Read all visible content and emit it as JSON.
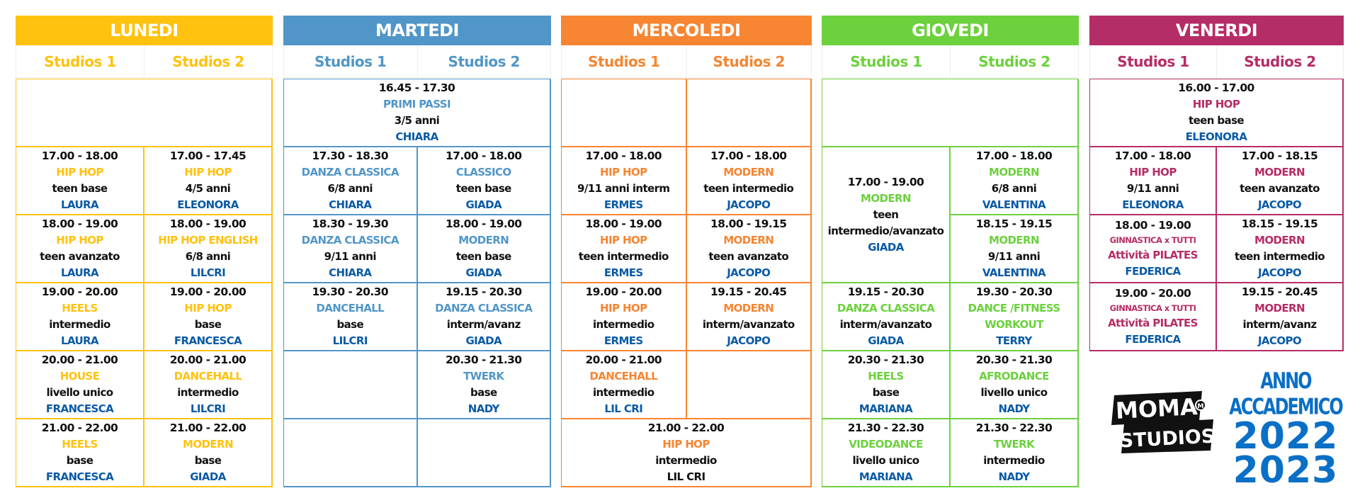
{
  "colors": {
    "lunedi": "#ffc20e",
    "martedi": "#5196c8",
    "mercoledi": "#f78531",
    "giovedi": "#6cd13d",
    "venerdi": "#b52d66",
    "teacher": "#0a5aa6"
  },
  "days": [
    {
      "key": "lunedi",
      "name": "LUNEDI",
      "studios": [
        "Studios 1",
        "Studios 2"
      ],
      "cells": [
        {
          "span": 2,
          "empty": true
        },
        {
          "time": "17.00  - 18.00",
          "course": "HIP HOP",
          "level": "teen base",
          "teacher": "LAURA"
        },
        {
          "time": "17.00  - 17.45",
          "course": "HIP HOP",
          "level": "4/5 anni",
          "teacher": "ELEONORA"
        },
        {
          "time": "18.00  - 19.00",
          "course": "HIP HOP",
          "level": "teen avanzato",
          "teacher": "LAURA"
        },
        {
          "time": "18.00  - 19.00",
          "course": "HIP HOP ENGLISH",
          "level": "6/8 anni",
          "teacher": "LILCRI"
        },
        {
          "time": "19.00  - 20.00",
          "course": "HEELS",
          "level": "intermedio",
          "teacher": "LAURA"
        },
        {
          "time": "19.00  - 20.00",
          "course": "HIP HOP",
          "level": "base",
          "teacher": "FRANCESCA"
        },
        {
          "time": "20.00  - 21.00",
          "course": "HOUSE",
          "level": "livello unico",
          "teacher": "FRANCESCA"
        },
        {
          "time": "20.00  - 21.00",
          "course": "DANCEHALL",
          "level": "intermedio",
          "teacher": "LILCRI"
        },
        {
          "time": "21.00  - 22.00",
          "course": "HEELS",
          "level": "base",
          "teacher": "FRANCESCA"
        },
        {
          "time": "21.00  - 22.00",
          "course": "MODERN",
          "level": "base",
          "teacher": "GIADA"
        }
      ]
    },
    {
      "key": "martedi",
      "name": "MARTEDI",
      "studios": [
        "Studios 1",
        "Studios 2"
      ],
      "cells": [
        {
          "span": 2,
          "time": "16.45  - 17.30",
          "course": "PRIMI PASSI",
          "level": "3/5 anni",
          "teacher": "CHIARA"
        },
        {
          "time": "17.30  - 18.30",
          "course": "DANZA CLASSICA",
          "level": "6/8 anni",
          "teacher": "CHIARA"
        },
        {
          "time": "17.00  - 18.00",
          "course": "CLASSICO",
          "level": "teen base",
          "teacher": "GIADA"
        },
        {
          "time": "18.30  - 19.30",
          "course": "DANZA CLASSICA",
          "level": "9/11 anni",
          "teacher": "CHIARA"
        },
        {
          "time": "18.00  - 19.00",
          "course": "MODERN",
          "level": "teen base",
          "teacher": "GIADA"
        },
        {
          "time": "19.30  - 20.30",
          "course": "DANCEHALL",
          "level": "base",
          "teacher": "LILCRI"
        },
        {
          "time": "19.15  - 20.30",
          "course": "DANZA CLASSICA",
          "level": "interm/avanz",
          "teacher": "GIADA"
        },
        {
          "empty": true
        },
        {
          "time": "20.30  - 21.30",
          "course": "TWERK",
          "level": "base",
          "teacher": "NADY"
        },
        {
          "empty": true
        },
        {
          "empty": true
        }
      ]
    },
    {
      "key": "mercoledi",
      "name": "MERCOLEDI",
      "studios": [
        "Studios 1",
        "Studios 2"
      ],
      "cells": [
        {
          "empty": true
        },
        {
          "empty": true
        },
        {
          "time": "17.00  - 18.00",
          "course": "HIP HOP",
          "level": "9/11 anni interm",
          "teacher": "ERMES"
        },
        {
          "time": "17.00  - 18.00",
          "course": "MODERN",
          "level": "teen intermedio",
          "teacher": "JACOPO"
        },
        {
          "time": "18.00  - 19.00",
          "course": "HIP HOP",
          "level": "teen intermedio",
          "teacher": "ERMES"
        },
        {
          "time": "18.00  - 19.15",
          "course": "MODERN",
          "level": "teen avanzato",
          "teacher": "JACOPO"
        },
        {
          "time": "19.00  - 20.00",
          "course": "HIP HOP",
          "level": "intermedio",
          "teacher": "ERMES"
        },
        {
          "time": "19.15  - 20.45",
          "course": "MODERN",
          "level": "interm/avanzato",
          "teacher": "JACOPO"
        },
        {
          "time": "20.00  - 21.00",
          "course": "DANCEHALL",
          "level": "intermedio",
          "teacher": "LIL CRI"
        },
        {
          "empty": true
        },
        {
          "span": 2,
          "time": "21.00  - 22.00",
          "course": "HIP HOP",
          "level": "intermedio",
          "teacher": "LIL CRI",
          "teacherBlack": true
        }
      ]
    },
    {
      "key": "giovedi",
      "name": "GIOVEDI",
      "studios": [
        "Studios 1",
        "Studios 2"
      ],
      "cells": [
        {
          "span": 2,
          "empty": true
        },
        {
          "rowspan": 2,
          "time": "17.00  - 19.00",
          "course": "MODERN",
          "level": "teen",
          "level2": "intermedio/avanzato",
          "teacher": "GIADA"
        },
        {
          "time": "17.00  - 18.00",
          "course": "MODERN",
          "level": "6/8 anni",
          "teacher": "VALENTINA"
        },
        {
          "time": "18.15  - 19.15",
          "course": "MODERN",
          "level": "9/11 anni",
          "teacher": "VALENTINA"
        },
        {
          "time": "19.15  - 20.30",
          "course": "DANZA CLASSICA",
          "level": "interm/avanzato",
          "teacher": "GIADA"
        },
        {
          "time": "19.30  - 20.30",
          "course": "DANCE /FITNESS",
          "course2": "WORKOUT",
          "teacher": "TERRY"
        },
        {
          "time": "20.30  - 21.30",
          "course": "HEELS",
          "level": "base",
          "teacher": "MARIANA"
        },
        {
          "time": "20.30  - 21.30",
          "course": "AFRODANCE",
          "level": "livello unico",
          "teacher": "NADY"
        },
        {
          "time": "21.30  - 22.30",
          "course": "VIDEODANCE",
          "level": "livello unico",
          "teacher": "MARIANA"
        },
        {
          "time": "21.30  - 22.30",
          "course": "TWERK",
          "level": "intermedio",
          "teacher": "NADY"
        }
      ]
    },
    {
      "key": "venerdi",
      "name": "VENERDI",
      "studios": [
        "Studios 1",
        "Studios 2"
      ],
      "cells": [
        {
          "span": 2,
          "time": "16.00  - 17.00",
          "course": "HIP HOP",
          "level": "teen base",
          "teacher": "ELEONORA"
        },
        {
          "time": "17.00  - 18.00",
          "course": "HIP HOP",
          "level": "9/11 anni",
          "teacher": "ELEONORA"
        },
        {
          "time": "17.00  - 18.15",
          "course": "MODERN",
          "level": "teen avanzato",
          "teacher": "JACOPO"
        },
        {
          "time": "18.00  - 19.00",
          "small": "GINNASTICA x TUTTI",
          "course": "Attività PILATES",
          "teacher": "FEDERICA"
        },
        {
          "time": "18.15  - 19.15",
          "course": "MODERN",
          "level": "teen intermedio",
          "teacher": "JACOPO"
        },
        {
          "time": "19.00  - 20.00",
          "small": "GINNASTICA x TUTTI",
          "course": "Attività PILATES",
          "teacher": "FEDERICA"
        },
        {
          "time": "19.15  - 20.45",
          "course": "MODERN",
          "level": "interm/avanz",
          "teacher": "JACOPO"
        }
      ]
    }
  ],
  "logo": {
    "line1": "MOMA",
    "line2": "STUDIOS",
    "badge": "M"
  },
  "anno": {
    "label": "ANNO ACCADEMICO",
    "year1": "2022",
    "year2": "2023"
  }
}
